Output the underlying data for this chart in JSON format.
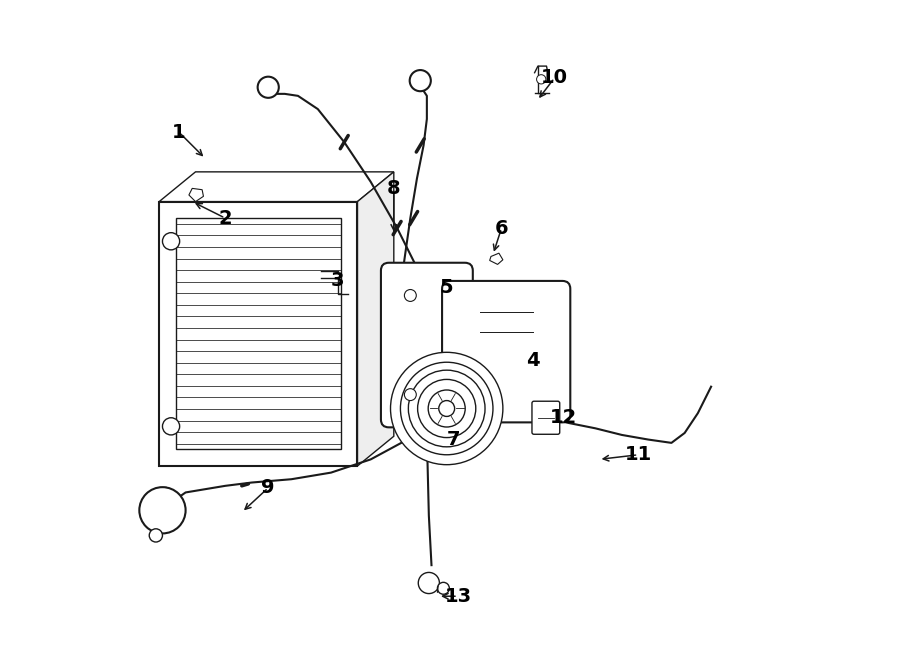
{
  "bg_color": "#ffffff",
  "line_color": "#1a1a1a",
  "label_color": "#000000",
  "label_fontsize": 14,
  "labels": {
    "1": [
      0.09,
      0.8,
      0.13,
      0.76
    ],
    "2": [
      0.16,
      0.67,
      0.11,
      0.695
    ],
    "3": [
      0.33,
      0.575,
      0.305,
      0.565
    ],
    "4": [
      0.625,
      0.455,
      0.565,
      0.465
    ],
    "5": [
      0.495,
      0.565,
      0.468,
      0.535
    ],
    "6": [
      0.578,
      0.655,
      0.565,
      0.615
    ],
    "7": [
      0.505,
      0.335,
      0.505,
      0.365
    ],
    "8": [
      0.415,
      0.715,
      0.415,
      0.645
    ],
    "9": [
      0.225,
      0.262,
      0.185,
      0.225
    ],
    "10": [
      0.658,
      0.882,
      0.632,
      0.848
    ],
    "11": [
      0.785,
      0.312,
      0.725,
      0.305
    ],
    "12": [
      0.672,
      0.368,
      0.648,
      0.368
    ],
    "13": [
      0.512,
      0.098,
      0.482,
      0.098
    ]
  }
}
